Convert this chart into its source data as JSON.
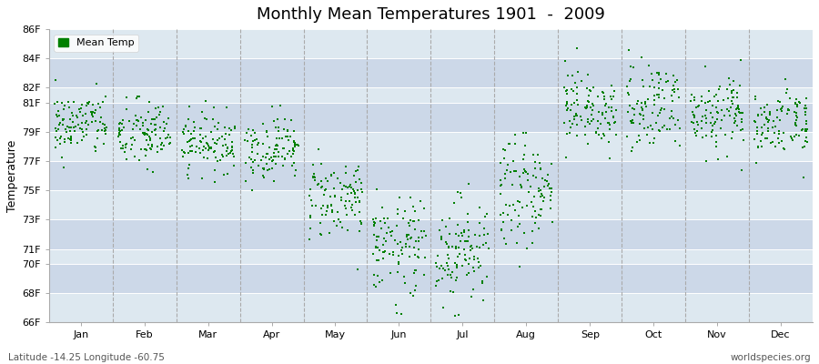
{
  "title": "Monthly Mean Temperatures 1901  -  2009",
  "ylabel": "Temperature",
  "subtitle": "Latitude -14.25 Longitude -60.75",
  "watermark": "worldspecies.org",
  "legend_label": "Mean Temp",
  "dot_color": "#008000",
  "fig_bg": "#ffffff",
  "plot_bg": "#dde8f0",
  "band_colors": [
    "#dde8f0",
    "#ccd8e8"
  ],
  "grid_color": "#ffffff",
  "vline_color": "#aaaaaa",
  "ylim_low": 66,
  "ylim_high": 86,
  "yticks": [
    66,
    68,
    70,
    71,
    73,
    75,
    77,
    79,
    81,
    82,
    84,
    86
  ],
  "ytick_labels": [
    "66F",
    "68F",
    "70F",
    "71F",
    "73F",
    "75F",
    "77F",
    "79F",
    "81F",
    "82F",
    "84F",
    "86F"
  ],
  "months": [
    "Jan",
    "Feb",
    "Mar",
    "Apr",
    "May",
    "Jun",
    "Jul",
    "Aug",
    "Sep",
    "Oct",
    "Nov",
    "Dec"
  ],
  "monthly_means_F": [
    79.5,
    78.8,
    78.3,
    77.9,
    74.5,
    71.2,
    71.0,
    74.8,
    80.2,
    80.8,
    80.3,
    79.7
  ],
  "monthly_stds_F": [
    1.1,
    1.2,
    1.0,
    1.1,
    1.4,
    1.6,
    1.8,
    1.8,
    1.4,
    1.4,
    1.3,
    1.1
  ],
  "n_years": 109,
  "seed": 42,
  "dot_size": 4,
  "title_fontsize": 13,
  "axis_fontsize": 8,
  "ylabel_fontsize": 9
}
